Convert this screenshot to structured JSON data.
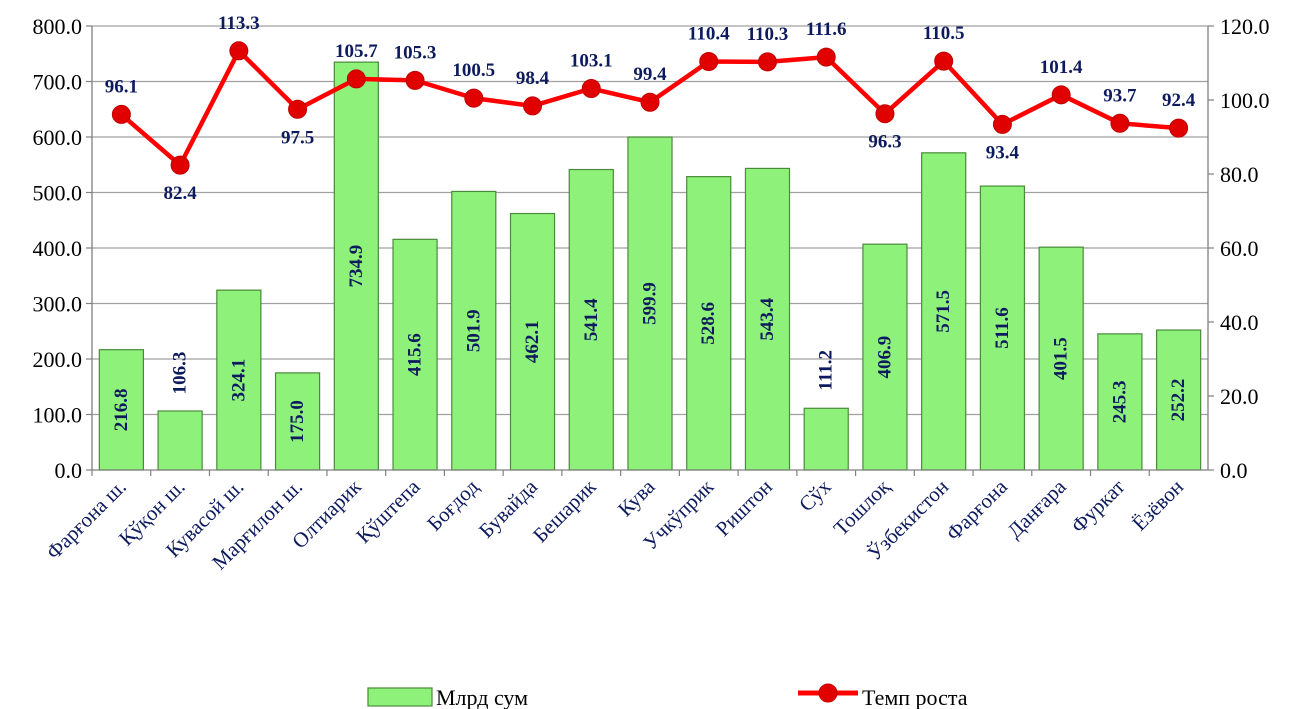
{
  "chart_data": {
    "type": "bar",
    "categories": [
      "Фарғона ш.",
      "Қўқон ш.",
      "Кувасой ш.",
      "Марғилон ш.",
      "Олтиарик",
      "Қўштепа",
      "Боғдод",
      "Бувайда",
      "Бешарик",
      "Кува",
      "Учкўприк",
      "Риштон",
      "Сўх",
      "Тошлоқ",
      "Ўзбекистон",
      "Фарғона",
      "Данғара",
      "Фуркат",
      "Ёзёвон"
    ],
    "series": [
      {
        "name": "Млрд сум",
        "type": "bar",
        "axis": "left",
        "values": [
          216.8,
          106.3,
          324.1,
          175.0,
          734.9,
          415.6,
          501.9,
          462.1,
          541.4,
          599.9,
          528.6,
          543.4,
          111.2,
          406.9,
          571.5,
          511.6,
          401.5,
          245.3,
          252.2
        ],
        "labels": [
          "216.8",
          "106.3",
          "324.1",
          "175.0",
          "734.9",
          "415.6",
          "501.9",
          "462.1",
          "541.4",
          "599.9",
          "528.6",
          "543.4",
          "111.2",
          "406.9",
          "571.5",
          "511.6",
          "401.5",
          "245.3",
          "252.2"
        ]
      },
      {
        "name": "Темп роста",
        "type": "line",
        "axis": "right",
        "values": [
          96.1,
          82.4,
          113.3,
          97.5,
          105.7,
          105.3,
          100.5,
          98.4,
          103.1,
          99.4,
          110.4,
          110.3,
          111.6,
          96.3,
          110.5,
          93.4,
          101.4,
          93.7,
          92.4
        ],
        "labels": [
          "96.1",
          "82.4",
          "113.3",
          "97.5",
          "105.7",
          "105.3",
          "100.5",
          "98.4",
          "103.1",
          "99.4",
          "110.4",
          "110.3",
          "111.6",
          "96.3",
          "110.5",
          "93.4",
          "101.4",
          "93.7",
          "92.4"
        ]
      }
    ],
    "y_left": {
      "min": 0,
      "max": 800,
      "ticks": [
        "0.0",
        "100.0",
        "200.0",
        "300.0",
        "400.0",
        "500.0",
        "600.0",
        "700.0",
        "800.0"
      ]
    },
    "y_right": {
      "min": 0,
      "max": 120,
      "ticks": [
        "0.0",
        "20.0",
        "40.0",
        "60.0",
        "80.0",
        "100.0",
        "120.0"
      ]
    },
    "grid": true,
    "legend": "bottom",
    "colors": {
      "bar_fill": "#8ef27a",
      "bar_stroke": "#4a8a3a",
      "line": "#ff0000",
      "marker": "#e00000",
      "label_text": "#0d1a5e",
      "grid": "#a0a0a0"
    }
  }
}
